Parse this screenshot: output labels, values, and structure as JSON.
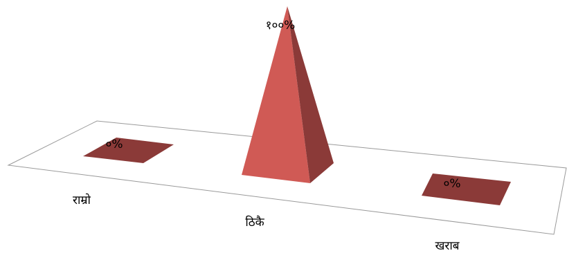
{
  "chart_data": {
    "type": "pyramid3d",
    "categories": [
      "राम्रो",
      "ठिकै",
      "खराब"
    ],
    "values": [
      0,
      100,
      0
    ],
    "value_labels": [
      "०%",
      "१००%",
      "०%"
    ],
    "colors": {
      "light": "#d05a55",
      "dark": "#8b3a38"
    }
  }
}
